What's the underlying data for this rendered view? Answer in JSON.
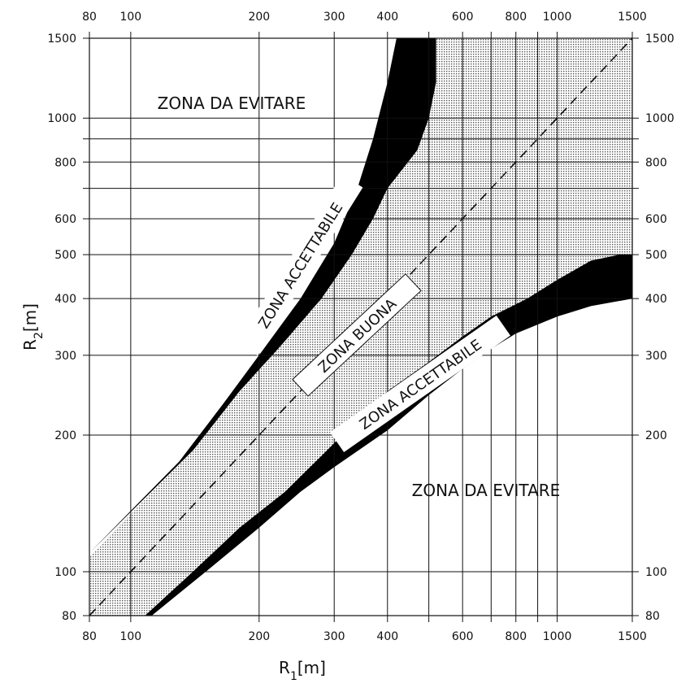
{
  "chart_data": {
    "type": "area",
    "xscale": "log",
    "yscale": "log",
    "xlim": [
      80,
      1500
    ],
    "ylim": [
      80,
      1500
    ],
    "x_ticks": [
      80,
      100,
      200,
      300,
      400,
      600,
      800,
      1000,
      1500
    ],
    "x_ticks_top": [
      80,
      100,
      200,
      300,
      400,
      600,
      800,
      1000,
      1500
    ],
    "y_ticks": [
      80,
      100,
      200,
      300,
      400,
      500,
      600,
      800,
      1000,
      1500
    ],
    "x_grid": [
      80,
      100,
      200,
      300,
      400,
      500,
      600,
      700,
      800,
      900,
      1000,
      1500
    ],
    "y_grid": [
      80,
      100,
      200,
      300,
      400,
      500,
      600,
      700,
      800,
      900,
      1000,
      1500
    ],
    "grid": true,
    "x_labels": {
      "label": "R",
      "sub": "1",
      "unit": "[m]"
    },
    "y_labels": {
      "label": "R",
      "sub": "2",
      "unit": "[m]"
    },
    "good_zone": {
      "label": "ZONA BUONA",
      "polygon": [
        [
          80,
          108
        ],
        [
          140,
          185
        ],
        [
          180,
          250
        ],
        [
          225,
          315
        ],
        [
          280,
          400
        ],
        [
          330,
          500
        ],
        [
          370,
          600
        ],
        [
          400,
          700
        ],
        [
          470,
          850
        ],
        [
          500,
          1000
        ],
        [
          520,
          1200
        ],
        [
          520,
          1500
        ],
        [
          1500,
          1500
        ],
        [
          1500,
          500
        ],
        [
          1400,
          500
        ],
        [
          1200,
          485
        ],
        [
          1000,
          440
        ],
        [
          850,
          400
        ],
        [
          700,
          365
        ],
        [
          600,
          330
        ],
        [
          500,
          290
        ],
        [
          400,
          250
        ],
        [
          330,
          210
        ],
        [
          280,
          180
        ],
        [
          230,
          150
        ],
        [
          180,
          125
        ],
        [
          140,
          100
        ],
        [
          108,
          80
        ],
        [
          80,
          80
        ]
      ]
    },
    "acceptable_upper": {
      "label": "ZONA ACCETTABILE",
      "outer": [
        [
          80,
          110
        ],
        [
          130,
          175
        ],
        [
          165,
          235
        ],
        [
          200,
          300
        ],
        [
          250,
          400
        ],
        [
          300,
          530
        ],
        [
          340,
          700
        ],
        [
          370,
          900
        ],
        [
          400,
          1200
        ],
        [
          420,
          1500
        ]
      ],
      "inner": [
        [
          520,
          1500
        ],
        [
          520,
          1200
        ],
        [
          500,
          1000
        ],
        [
          470,
          850
        ],
        [
          400,
          700
        ],
        [
          370,
          600
        ],
        [
          330,
          500
        ],
        [
          280,
          400
        ],
        [
          225,
          315
        ],
        [
          180,
          250
        ],
        [
          140,
          185
        ],
        [
          80,
          110
        ]
      ]
    },
    "acceptable_lower": {
      "label": "ZONA ACCETTABILE",
      "outer": [
        [
          1500,
          500
        ],
        [
          1400,
          500
        ],
        [
          1200,
          485
        ],
        [
          1000,
          440
        ],
        [
          850,
          400
        ],
        [
          700,
          365
        ],
        [
          600,
          330
        ],
        [
          500,
          290
        ],
        [
          400,
          250
        ],
        [
          330,
          210
        ],
        [
          280,
          180
        ],
        [
          230,
          150
        ],
        [
          180,
          125
        ],
        [
          140,
          100
        ],
        [
          108,
          80
        ]
      ],
      "inner": [
        [
          112,
          80
        ],
        [
          150,
          100
        ],
        [
          200,
          125
        ],
        [
          250,
          150
        ],
        [
          300,
          170
        ],
        [
          400,
          205
        ],
        [
          500,
          245
        ],
        [
          600,
          280
        ],
        [
          700,
          310
        ],
        [
          800,
          335
        ],
        [
          1000,
          365
        ],
        [
          1200,
          385
        ],
        [
          1500,
          400
        ]
      ]
    },
    "diagonal": [
      [
        80,
        80
      ],
      [
        1500,
        1500
      ]
    ],
    "avoid_labels": [
      "ZONA DA EVITARE",
      "ZONA DA EVITARE"
    ]
  }
}
